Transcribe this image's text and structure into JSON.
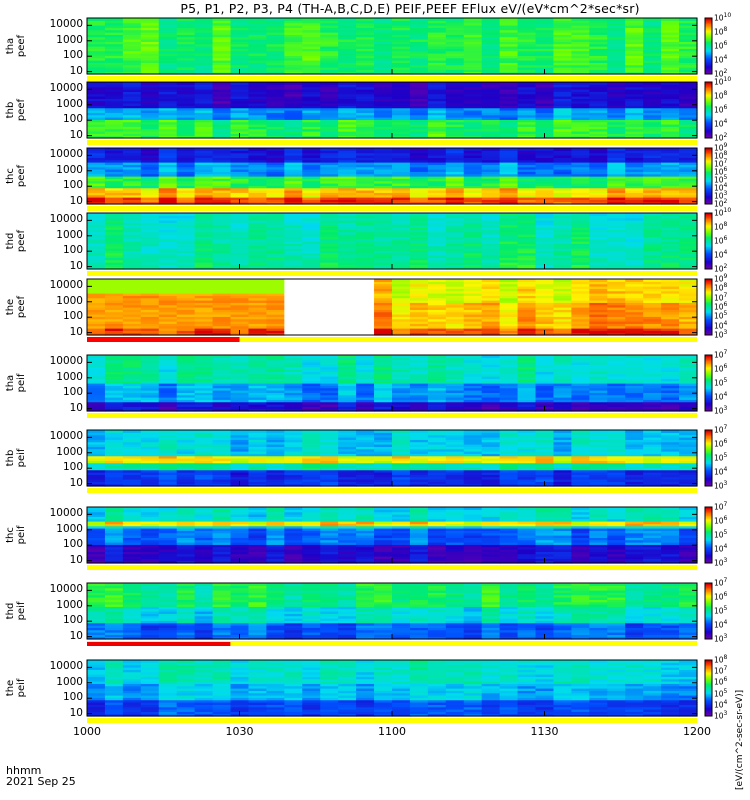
{
  "title": "P5, P1, P2, P3, P4 (TH-A,B,C,D,E) PEIF,PEEF EFlux eV/(eV*cm^2*sec*sr)",
  "footer": {
    "time_label": "hhmm",
    "date_label": "2021 Sep 25"
  },
  "chart_data": {
    "type": "heatmap",
    "x_ticks": [
      "1000",
      "1030",
      "1100",
      "1130",
      "1200"
    ],
    "x_range": [
      "10:00",
      "12:00"
    ],
    "y_scale": "log",
    "y_ticks": [
      "10",
      "100",
      "1000",
      "10000"
    ],
    "colorbar_unit": "[eV/(cm^2-sec-sr-eV)]",
    "panels": [
      {
        "probe": "tha",
        "species": "peef",
        "zmin": 2,
        "zmax": 10,
        "colorbar_ticks": [
          2,
          4,
          6,
          8,
          10
        ],
        "ylim": [
          7,
          30000
        ]
      },
      {
        "probe": "thb",
        "species": "peef",
        "zmin": 2,
        "zmax": 10,
        "colorbar_ticks": [
          2,
          4,
          6,
          8,
          10
        ],
        "ylim": [
          7,
          30000
        ]
      },
      {
        "probe": "thc",
        "species": "peef",
        "zmin": 2,
        "zmax": 9,
        "colorbar_ticks": [
          2,
          3,
          4,
          5,
          6,
          7,
          8,
          9
        ],
        "ylim": [
          7,
          30000
        ]
      },
      {
        "probe": "thd",
        "species": "peef",
        "zmin": 2,
        "zmax": 10,
        "colorbar_ticks": [
          2,
          4,
          6,
          8,
          10
        ],
        "ylim": [
          7,
          30000
        ]
      },
      {
        "probe": "the",
        "species": "peef",
        "zmin": 3,
        "zmax": 9,
        "colorbar_ticks": [
          3,
          4,
          5,
          6,
          7,
          8,
          9
        ],
        "ylim": [
          7,
          30000
        ]
      },
      {
        "probe": "tha",
        "species": "peif",
        "zmin": 3,
        "zmax": 7,
        "colorbar_ticks": [
          3,
          4,
          5,
          6,
          7
        ],
        "ylim": [
          7,
          30000
        ]
      },
      {
        "probe": "thb",
        "species": "peif",
        "zmin": 3,
        "zmax": 7,
        "colorbar_ticks": [
          3,
          4,
          5,
          6,
          7
        ],
        "ylim": [
          7,
          30000
        ]
      },
      {
        "probe": "thc",
        "species": "peif",
        "zmin": 3,
        "zmax": 7,
        "colorbar_ticks": [
          3,
          4,
          5,
          6,
          7
        ],
        "ylim": [
          7,
          30000
        ]
      },
      {
        "probe": "thd",
        "species": "peif",
        "zmin": 3,
        "zmax": 7,
        "colorbar_ticks": [
          3,
          4,
          5,
          6,
          7
        ],
        "ylim": [
          7,
          30000
        ]
      },
      {
        "probe": "the",
        "species": "peif",
        "zmin": 3,
        "zmax": 8,
        "colorbar_ticks": [
          3,
          4,
          5,
          6,
          7,
          8
        ],
        "ylim": [
          7,
          30000
        ]
      }
    ]
  }
}
